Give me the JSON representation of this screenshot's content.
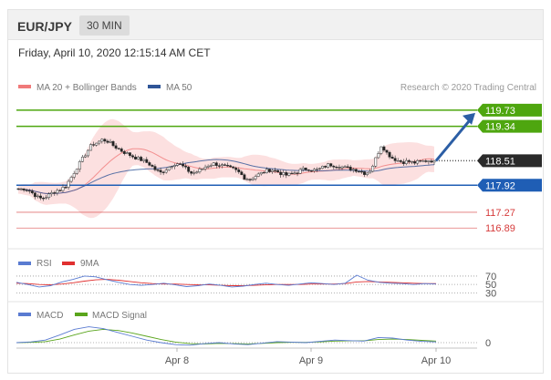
{
  "header": {
    "pair": "EUR/JPY",
    "timeframe": "30 MIN"
  },
  "timestamp": "Friday, April 10, 2020 12:15:14 AM CET",
  "copyright": "Research © 2020 Trading Central",
  "colors": {
    "resistance": "#4ea60f",
    "support_main": "#1f5eb5",
    "support_minor": "#d63b3b",
    "bollinger": "#f7a5a5",
    "ma20": "#f07a7a",
    "ma50": "#2f5597",
    "rsi": "#5a7bd1",
    "rsi_ma": "#e03030",
    "macd": "#5a7bd1",
    "macd_signal": "#5aa51c",
    "candle_up": "#ffffff",
    "candle_down": "#222222",
    "arrow": "#2c5ea5"
  },
  "chart_data": [
    {
      "type": "candlestick",
      "panel": "price",
      "legend": [
        "MA 20 + Bollinger Bands",
        "MA 50"
      ],
      "ylim": [
        116.5,
        120.1
      ],
      "x_ticks": [
        "Apr 8",
        "Apr 9",
        "Apr 10"
      ],
      "close_path": [
        117.82,
        117.84,
        117.8,
        117.7,
        117.6,
        117.62,
        117.7,
        117.78,
        117.82,
        117.9,
        118.1,
        118.32,
        118.52,
        118.72,
        118.9,
        118.95,
        119.02,
        118.98,
        118.88,
        118.8,
        118.72,
        118.66,
        118.6,
        118.55,
        118.5,
        118.42,
        118.3,
        118.22,
        118.3,
        118.4,
        118.46,
        118.4,
        118.3,
        118.2,
        118.25,
        118.32,
        118.4,
        118.44,
        118.42,
        118.38,
        118.34,
        118.3,
        118.22,
        118.1,
        118.06,
        118.14,
        118.2,
        118.26,
        118.3,
        118.26,
        118.2,
        118.16,
        118.2,
        118.24,
        118.3,
        118.32,
        118.28,
        118.3,
        118.36,
        118.42,
        118.4,
        118.38,
        118.34,
        118.32,
        118.3,
        118.26,
        118.2,
        118.3,
        118.6,
        118.9,
        118.7,
        118.58,
        118.52,
        118.48,
        118.5,
        118.46,
        118.48,
        118.5,
        118.52,
        118.51
      ],
      "levels": [
        {
          "label": "119.73",
          "value": 119.73,
          "kind": "resistance"
        },
        {
          "label": "119.34",
          "value": 119.34,
          "kind": "resistance"
        },
        {
          "label": "118.51",
          "value": 118.51,
          "kind": "last"
        },
        {
          "label": "117.92",
          "value": 117.92,
          "kind": "support_main"
        },
        {
          "label": "117.27",
          "value": 117.27,
          "kind": "support_minor"
        },
        {
          "label": "116.89",
          "value": 116.89,
          "kind": "support_minor"
        }
      ],
      "forecast_target": 119.73
    },
    {
      "type": "line",
      "panel": "rsi",
      "legend": [
        "RSI",
        "9MA"
      ],
      "ylim": [
        20,
        85
      ],
      "y_ticks": [
        "70",
        "50",
        "30"
      ],
      "rsi": [
        55,
        50,
        44,
        47,
        56,
        62,
        70,
        68,
        61,
        55,
        50,
        48,
        50,
        53,
        49,
        45,
        47,
        51,
        48,
        44,
        46,
        50,
        53,
        50,
        48,
        51,
        54,
        52,
        50,
        53,
        72,
        60,
        55,
        53,
        52,
        50,
        52,
        51
      ],
      "ma": [
        53,
        52,
        50,
        49,
        51,
        54,
        58,
        61,
        62,
        60,
        57,
        54,
        52,
        51,
        51,
        50,
        49,
        49,
        48,
        47,
        47,
        48,
        49,
        50,
        50,
        50,
        51,
        51,
        51,
        52,
        56,
        57,
        56,
        55,
        54,
        53,
        52,
        52
      ]
    },
    {
      "type": "line",
      "panel": "macd",
      "legend": [
        "MACD",
        "MACD Signal"
      ],
      "y_ticks": [
        "0"
      ],
      "macd": [
        0.0,
        0.03,
        0.1,
        0.3,
        0.52,
        0.62,
        0.55,
        0.4,
        0.25,
        0.1,
        0.0,
        -0.08,
        -0.1,
        -0.04,
        0.0,
        -0.05,
        -0.08,
        -0.02,
        0.04,
        0.02,
        0.0,
        0.05,
        0.1,
        0.08,
        0.06,
        0.2,
        0.18,
        0.1,
        0.05,
        0.03
      ],
      "signal": [
        0.0,
        0.01,
        0.04,
        0.14,
        0.3,
        0.45,
        0.52,
        0.48,
        0.38,
        0.25,
        0.12,
        0.02,
        -0.04,
        -0.05,
        -0.03,
        -0.04,
        -0.05,
        -0.03,
        0.0,
        0.01,
        0.01,
        0.03,
        0.06,
        0.07,
        0.07,
        0.12,
        0.14,
        0.12,
        0.09,
        0.06
      ]
    }
  ]
}
